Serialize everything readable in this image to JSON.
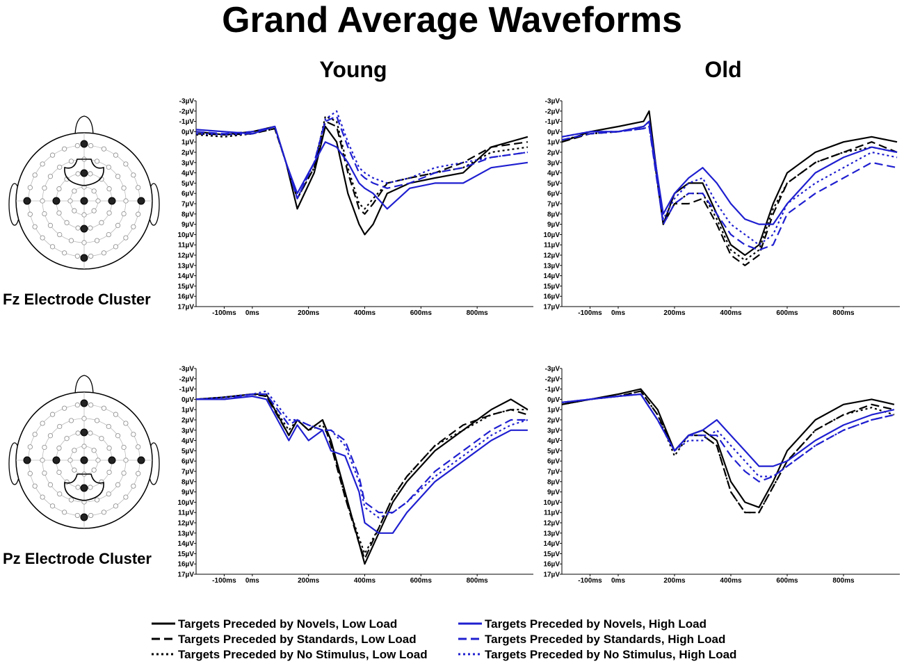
{
  "title": "Grand Average Waveforms",
  "columns": [
    "Young",
    "Old"
  ],
  "rows": [
    "Fz Electrode Cluster",
    "Pz Electrode Cluster"
  ],
  "legend": [
    {
      "label": "Targets Preceded by Novels, Low Load",
      "color": "#000000",
      "dash": "solid"
    },
    {
      "label": "Targets Preceded by Standards, Low Load",
      "color": "#000000",
      "dash": "dashed"
    },
    {
      "label": "Targets Preceded by No Stimulus, Low Load",
      "color": "#000000",
      "dash": "dotted"
    },
    {
      "label": "Targets Preceded by Novels, High Load",
      "color": "#1f1fd0",
      "dash": "solid"
    },
    {
      "label": "Targets Preceded by Standards, High Load",
      "color": "#1f1fd0",
      "dash": "dashed"
    },
    {
      "label": "Targets Preceded by No Stimulus, High Load",
      "color": "#1f1fd0",
      "dash": "dotted"
    }
  ],
  "chart_data": [
    {
      "type": "line",
      "panel": "Fz Young",
      "xlim": [
        -200,
        1000
      ],
      "ylim": [
        -3,
        17
      ],
      "y_inverted": true,
      "x_ticks": [
        "-100ms",
        "0ms",
        "200ms",
        "400ms",
        "600ms",
        "800ms"
      ],
      "x_tick_values": [
        -100,
        0,
        200,
        400,
        600,
        800
      ],
      "y_ticks": [
        "-3µV",
        "-2µV",
        "-1µV",
        "0µV",
        "1µV",
        "2µV",
        "3µV",
        "4µV",
        "5µV",
        "6µV",
        "7µV",
        "8µV",
        "9µV",
        "10µV",
        "11µV",
        "12µV",
        "13µV",
        "14µV",
        "15µV",
        "16µV",
        "17µV"
      ],
      "x": [
        -200,
        -100,
        0,
        80,
        120,
        160,
        220,
        260,
        300,
        340,
        380,
        400,
        430,
        480,
        560,
        650,
        750,
        850,
        980
      ],
      "series": [
        {
          "name": "Targets Preceded by Novels, Low Load",
          "values": [
            0,
            0.3,
            0,
            -0.5,
            3,
            7.5,
            4,
            -0.5,
            1,
            6,
            9,
            10,
            9,
            6,
            5,
            4.5,
            4,
            1.5,
            0.5
          ]
        },
        {
          "name": "Targets Preceded by Standards, Low Load",
          "values": [
            0.2,
            0.3,
            0.2,
            -0.3,
            3,
            6.5,
            3.5,
            -1,
            -0.5,
            4,
            7.5,
            8,
            7,
            5,
            4.5,
            4,
            3,
            1.5,
            1
          ]
        },
        {
          "name": "Targets Preceded by No Stimulus, Low Load",
          "values": [
            0.3,
            0.5,
            0.2,
            -0.3,
            3,
            6.5,
            3.5,
            -1.5,
            -1,
            3.5,
            7,
            7.5,
            6.5,
            5,
            4.5,
            4,
            3.5,
            2,
            1.5
          ]
        },
        {
          "name": "Targets Preceded by Novels, High Load",
          "values": [
            -0.2,
            0,
            0.2,
            -0.5,
            3,
            6,
            3,
            1,
            1.5,
            3,
            5,
            5.5,
            6,
            7.5,
            5.5,
            5,
            5,
            3.5,
            3
          ]
        },
        {
          "name": "Targets Preceded by Standards, High Load",
          "values": [
            0,
            0.2,
            0,
            -0.5,
            3,
            6.5,
            3,
            -1,
            -1.5,
            1.5,
            4,
            4.5,
            5,
            5.5,
            5,
            4,
            3.5,
            2.5,
            2
          ]
        },
        {
          "name": "Targets Preceded by No Stimulus, High Load",
          "values": [
            0.2,
            0.3,
            0.2,
            -0.5,
            3,
            6.5,
            3,
            -1.2,
            -2,
            1,
            3.5,
            4,
            4.5,
            5,
            4.5,
            3.5,
            3,
            2.5,
            2
          ]
        }
      ]
    },
    {
      "type": "line",
      "panel": "Fz Old",
      "xlim": [
        -200,
        1000
      ],
      "ylim": [
        -3,
        17
      ],
      "y_inverted": true,
      "x_ticks": [
        "-100ms",
        "0ms",
        "200ms",
        "400ms",
        "600ms",
        "800ms"
      ],
      "x_tick_values": [
        -100,
        0,
        200,
        400,
        600,
        800
      ],
      "y_ticks": [
        "-3µV",
        "-2µV",
        "-1µV",
        "0µV",
        "1µV",
        "2µV",
        "3µV",
        "4µV",
        "5µV",
        "6µV",
        "7µV",
        "8µV",
        "9µV",
        "10µV",
        "11µV",
        "12µV",
        "13µV",
        "14µV",
        "15µV",
        "16µV",
        "17µV"
      ],
      "x": [
        -200,
        -100,
        0,
        90,
        110,
        160,
        200,
        250,
        300,
        350,
        400,
        450,
        500,
        550,
        600,
        700,
        800,
        900,
        990
      ],
      "series": [
        {
          "name": "Targets Preceded by Novels, Low Load",
          "values": [
            1,
            0,
            -0.5,
            -1,
            -2,
            9,
            6,
            5,
            5,
            8,
            11,
            12,
            11,
            7,
            4,
            2,
            1,
            0.5,
            1
          ]
        },
        {
          "name": "Targets Preceded by Standards, Low Load",
          "values": [
            1,
            0.2,
            0,
            -0.5,
            -1,
            9,
            7,
            7,
            6.5,
            9,
            12,
            13,
            12,
            8,
            5,
            3,
            2,
            1,
            2
          ]
        },
        {
          "name": "Targets Preceded by No Stimulus, Low Load",
          "values": [
            0.8,
            0.2,
            0,
            -0.5,
            -1,
            9,
            7,
            6,
            6,
            8.5,
            11.5,
            12.5,
            11.5,
            7.5,
            5,
            3,
            2,
            1.5,
            2
          ]
        },
        {
          "name": "Targets Preceded by Novels, High Load",
          "values": [
            0.5,
            0,
            0,
            -0.5,
            -1,
            8,
            6,
            4.5,
            3.5,
            5,
            7,
            8.5,
            9,
            9,
            7,
            4,
            2.5,
            1.5,
            2
          ]
        },
        {
          "name": "Targets Preceded by Standards, High Load",
          "values": [
            0.8,
            0.2,
            0,
            -0.3,
            -0.5,
            9,
            7,
            6,
            6,
            8,
            10,
            11,
            11.5,
            11,
            8,
            6,
            4.5,
            3,
            3.5
          ]
        },
        {
          "name": "Targets Preceded by No Stimulus, High Load",
          "values": [
            0.5,
            0,
            0,
            -0.3,
            -0.5,
            8.5,
            6.5,
            5,
            4.5,
            7,
            9,
            10,
            11,
            10,
            7,
            5,
            3.5,
            2,
            2.5
          ]
        }
      ]
    },
    {
      "type": "line",
      "panel": "Pz Young",
      "xlim": [
        -200,
        1000
      ],
      "ylim": [
        -3,
        17
      ],
      "y_inverted": true,
      "x_ticks": [
        "-100ms",
        "0ms",
        "200ms",
        "400ms",
        "600ms",
        "800ms"
      ],
      "x_tick_values": [
        -100,
        0,
        200,
        400,
        600,
        800
      ],
      "y_ticks": [
        "-3µV",
        "-2µV",
        "-1µV",
        "0µV",
        "1µV",
        "2µV",
        "3µV",
        "4µV",
        "5µV",
        "6µV",
        "7µV",
        "8µV",
        "9µV",
        "10µV",
        "11µV",
        "12µV",
        "13µV",
        "14µV",
        "15µV",
        "16µV",
        "17µV"
      ],
      "x": [
        -200,
        -100,
        0,
        50,
        130,
        160,
        200,
        250,
        280,
        330,
        380,
        400,
        450,
        500,
        550,
        650,
        750,
        850,
        920,
        980
      ],
      "series": [
        {
          "name": "Targets Preceded by Novels, Low Load",
          "values": [
            0,
            -0.2,
            -0.5,
            -0.5,
            3.5,
            2,
            3,
            2,
            4,
            9,
            14,
            16,
            13,
            10,
            8,
            5,
            3,
            1,
            0,
            1
          ]
        },
        {
          "name": "Targets Preceded by Standards, Low Load",
          "values": [
            0,
            -0.2,
            -0.5,
            -0.3,
            3.5,
            2,
            3,
            2,
            4.5,
            9.5,
            14,
            15.5,
            12.5,
            9.5,
            7.5,
            4.5,
            2.5,
            1.5,
            1,
            1.5
          ]
        },
        {
          "name": "Targets Preceded by No Stimulus, Low Load",
          "values": [
            0,
            -0.2,
            -0.5,
            -0.3,
            3,
            2,
            3,
            2.5,
            4,
            9.5,
            13.5,
            15,
            12.5,
            9.5,
            7.5,
            4.5,
            3,
            1.5,
            1,
            1
          ]
        },
        {
          "name": "Targets Preceded by Novels, High Load",
          "values": [
            0,
            0,
            -0.3,
            0,
            4,
            2.5,
            4,
            3,
            5,
            5.5,
            9,
            12,
            13,
            13,
            11,
            8,
            6,
            4,
            3,
            3
          ]
        },
        {
          "name": "Targets Preceded by Standards, High Load",
          "values": [
            0,
            0,
            -0.5,
            -0.5,
            2.5,
            2,
            2.5,
            3,
            3,
            4,
            7.5,
            10,
            11,
            11,
            10,
            7,
            5,
            3,
            2,
            2
          ]
        },
        {
          "name": "Targets Preceded by No Stimulus, High Load",
          "values": [
            0,
            -0.2,
            -0.5,
            -0.8,
            2,
            2,
            2.5,
            3,
            3,
            4.5,
            8,
            10.5,
            11.5,
            11,
            10,
            7.5,
            5.5,
            3.5,
            2.5,
            2
          ]
        }
      ]
    },
    {
      "type": "line",
      "panel": "Pz Old",
      "xlim": [
        -200,
        1000
      ],
      "ylim": [
        -3,
        17
      ],
      "y_inverted": true,
      "x_ticks": [
        "-100ms",
        "0ms",
        "200ms",
        "400ms",
        "600ms",
        "800ms"
      ],
      "x_tick_values": [
        -100,
        0,
        200,
        400,
        600,
        800
      ],
      "y_ticks": [
        "-3µV",
        "-2µV",
        "-1µV",
        "0µV",
        "1µV",
        "2µV",
        "3µV",
        "4µV",
        "5µV",
        "6µV",
        "7µV",
        "8µV",
        "9µV",
        "10µV",
        "11µV",
        "12µV",
        "13µV",
        "14µV",
        "15µV",
        "16µV",
        "17µV"
      ],
      "x": [
        -200,
        -100,
        0,
        80,
        140,
        200,
        250,
        300,
        350,
        400,
        450,
        500,
        550,
        600,
        700,
        800,
        900,
        980
      ],
      "series": [
        {
          "name": "Targets Preceded by Novels, Low Load",
          "values": [
            0.5,
            0,
            -0.5,
            -1,
            1,
            5,
            3.5,
            3,
            4,
            8,
            10,
            10.5,
            8,
            5,
            2,
            0.5,
            0,
            0.5
          ]
        },
        {
          "name": "Targets Preceded by Standards, Low Load",
          "values": [
            0.5,
            0,
            -0.3,
            -0.8,
            1.5,
            5,
            3.5,
            3.5,
            4.5,
            9,
            11,
            11,
            8.5,
            6,
            3,
            1.5,
            0.5,
            1
          ]
        },
        {
          "name": "Targets Preceded by No Stimulus, Low Load",
          "values": [
            0.5,
            0,
            -0.3,
            -0.8,
            1.5,
            5.5,
            3.5,
            3.5,
            4.5,
            9,
            11,
            11,
            8.5,
            6,
            3,
            1.5,
            0.8,
            1.5
          ]
        },
        {
          "name": "Targets Preceded by Novels, High Load",
          "values": [
            0.3,
            0,
            -0.3,
            -0.5,
            2,
            5,
            3.5,
            3,
            2,
            3.5,
            5,
            6.5,
            6.5,
            6,
            4,
            2.5,
            1.5,
            1
          ]
        },
        {
          "name": "Targets Preceded by Standards, High Load",
          "values": [
            0.3,
            0,
            -0.3,
            -0.5,
            2,
            5,
            3.5,
            3.5,
            3.5,
            5.5,
            7,
            8,
            7.5,
            6.5,
            4.5,
            3,
            2,
            1.5
          ]
        },
        {
          "name": "Targets Preceded by No Stimulus, High Load",
          "values": [
            0.3,
            0,
            -0.3,
            -0.5,
            2,
            5,
            4,
            4,
            3,
            4.5,
            6,
            7.5,
            7.5,
            6.5,
            4.5,
            3,
            2,
            1.5
          ]
        }
      ]
    }
  ]
}
